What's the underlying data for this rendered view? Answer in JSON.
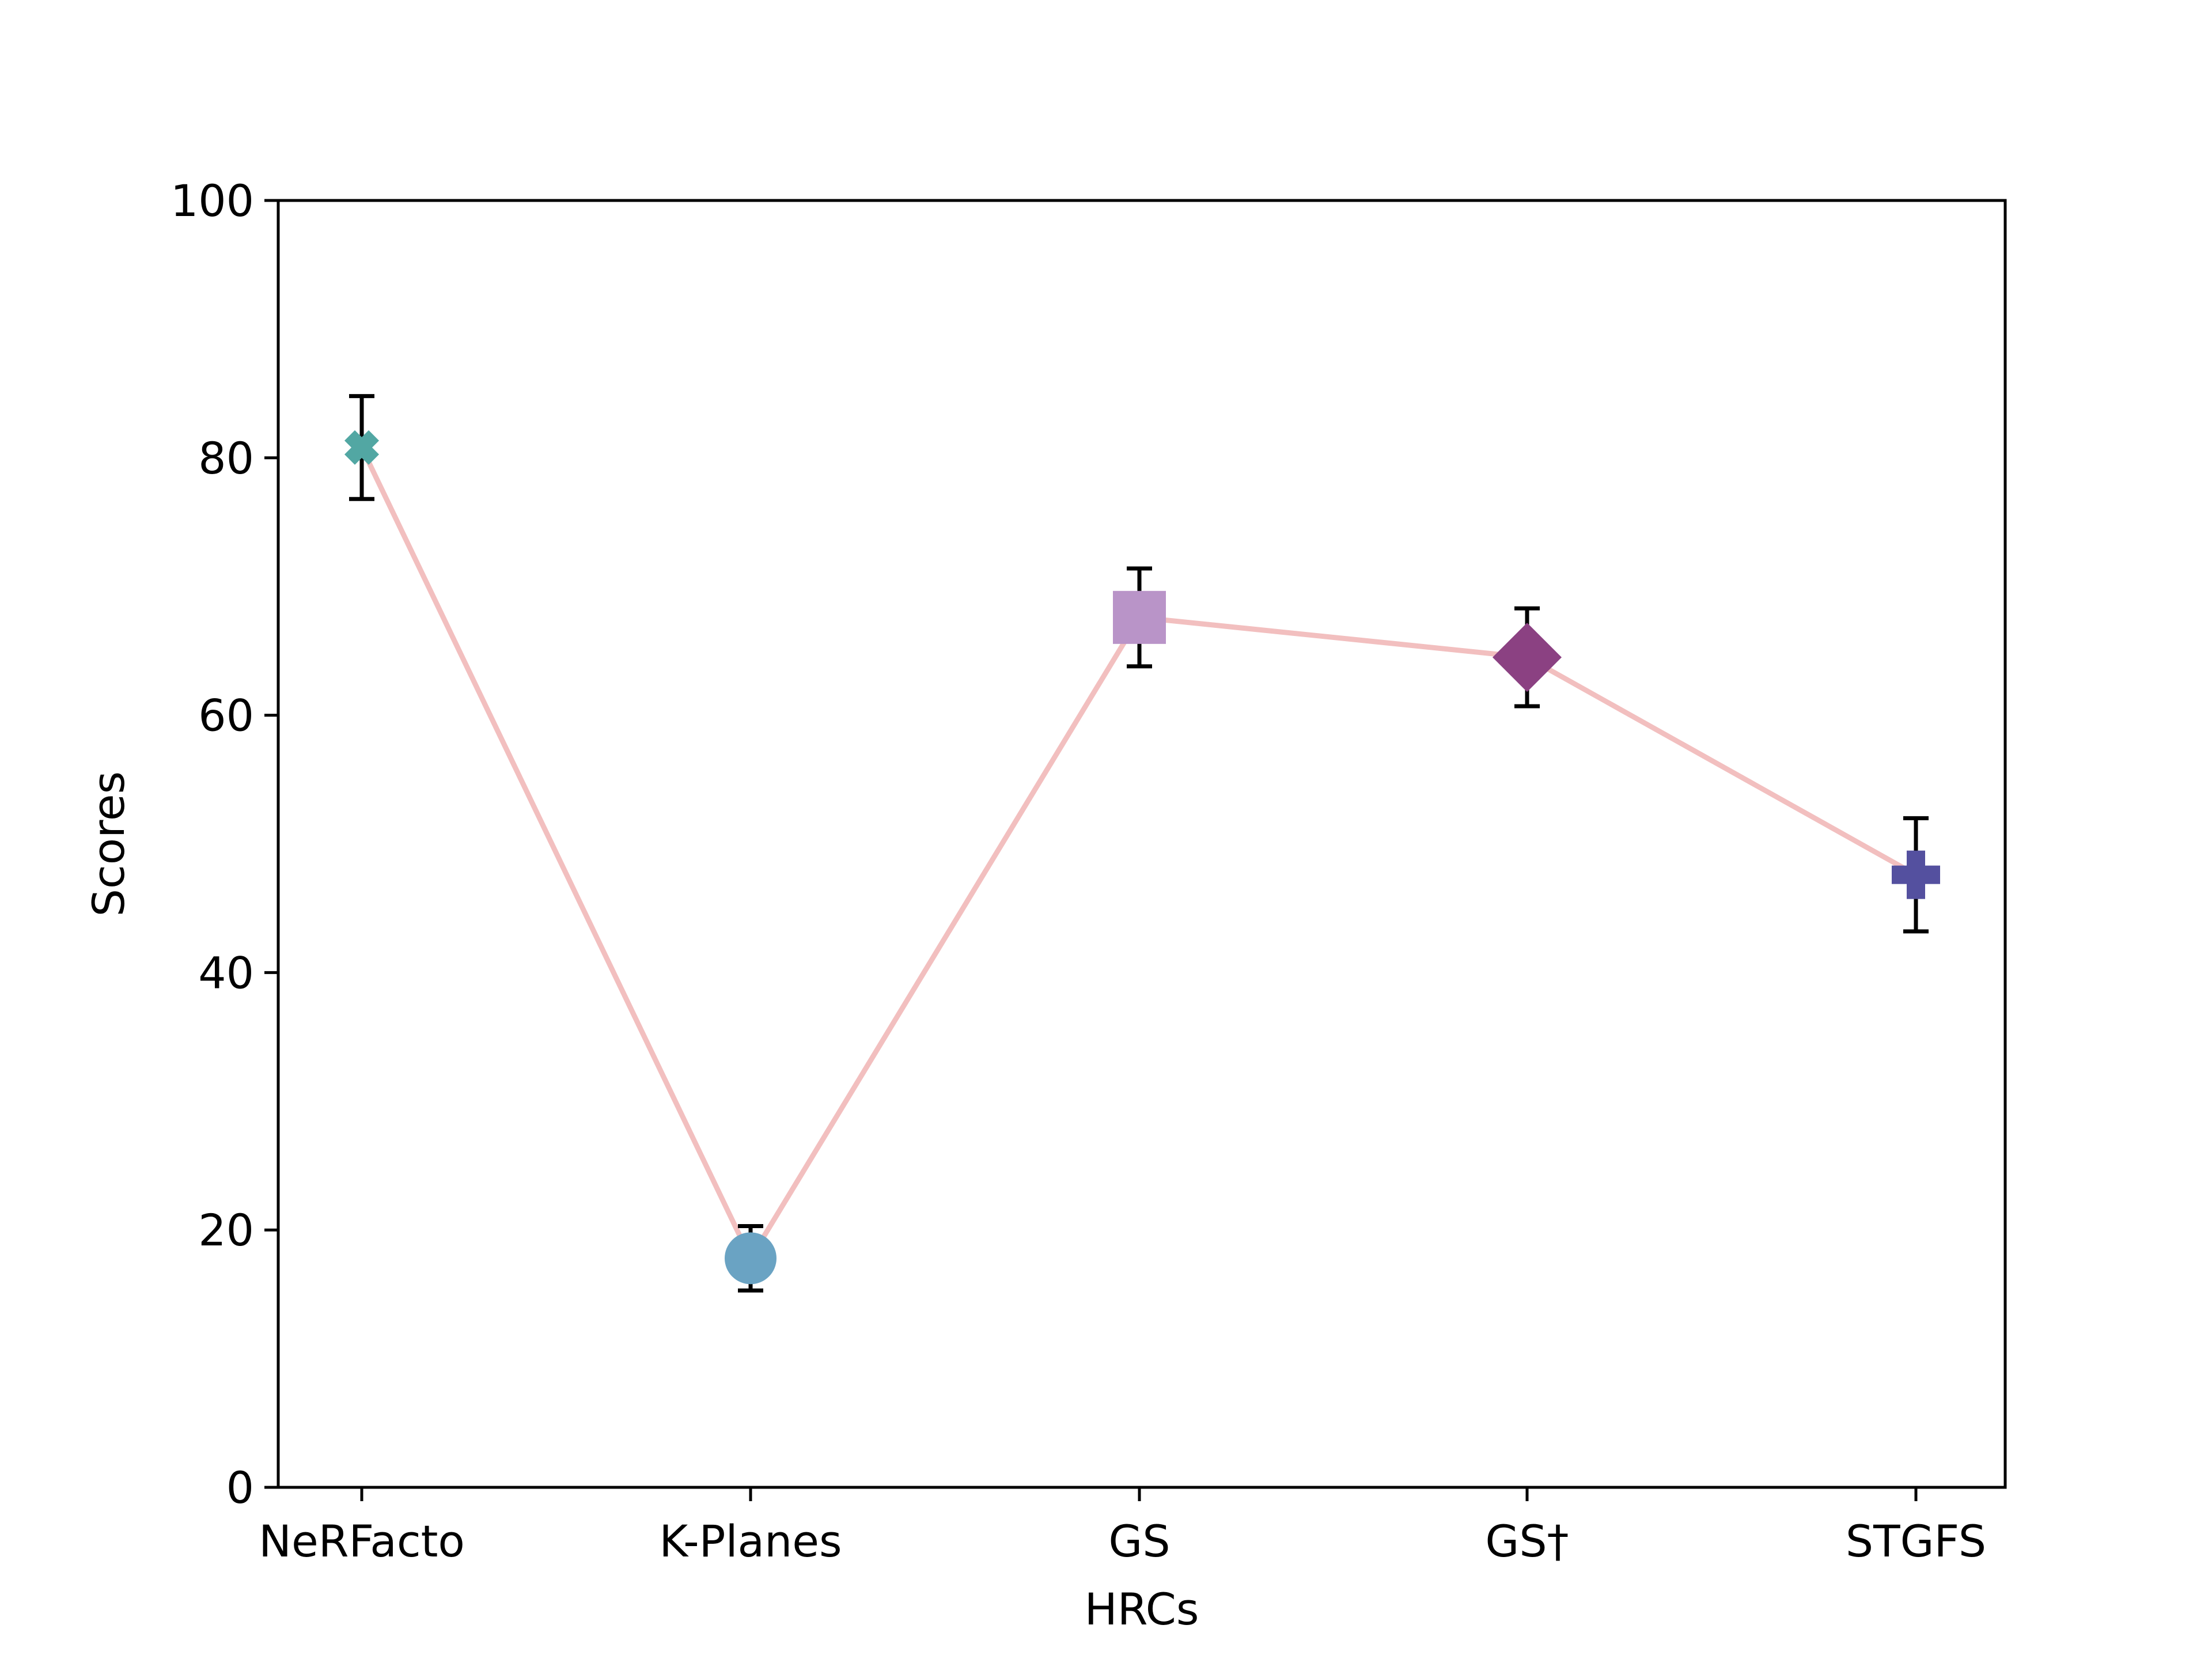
{
  "chart_data": {
    "type": "line",
    "title": "",
    "xlabel": "HRCs",
    "ylabel": "Scores",
    "ylim": [
      0,
      100
    ],
    "yticks": [
      0,
      20,
      40,
      60,
      80,
      100
    ],
    "grid": false,
    "categories": [
      "NeRFacto",
      "K-Planes",
      "GS",
      "GS†",
      "STGFS"
    ],
    "series": [
      {
        "name": "Scores",
        "line_color": "#f2bfbf",
        "values": [
          80.8,
          17.8,
          67.6,
          64.5,
          47.6
        ],
        "error": [
          4.0,
          2.5,
          3.8,
          3.8,
          4.4
        ],
        "markers": [
          "x",
          "circle",
          "square",
          "diamond",
          "plus"
        ],
        "marker_colors": [
          "#52a7a3",
          "#6aa3c3",
          "#b994c8",
          "#8b4182",
          "#54509f"
        ]
      }
    ],
    "error_bar_color": "#000000"
  }
}
